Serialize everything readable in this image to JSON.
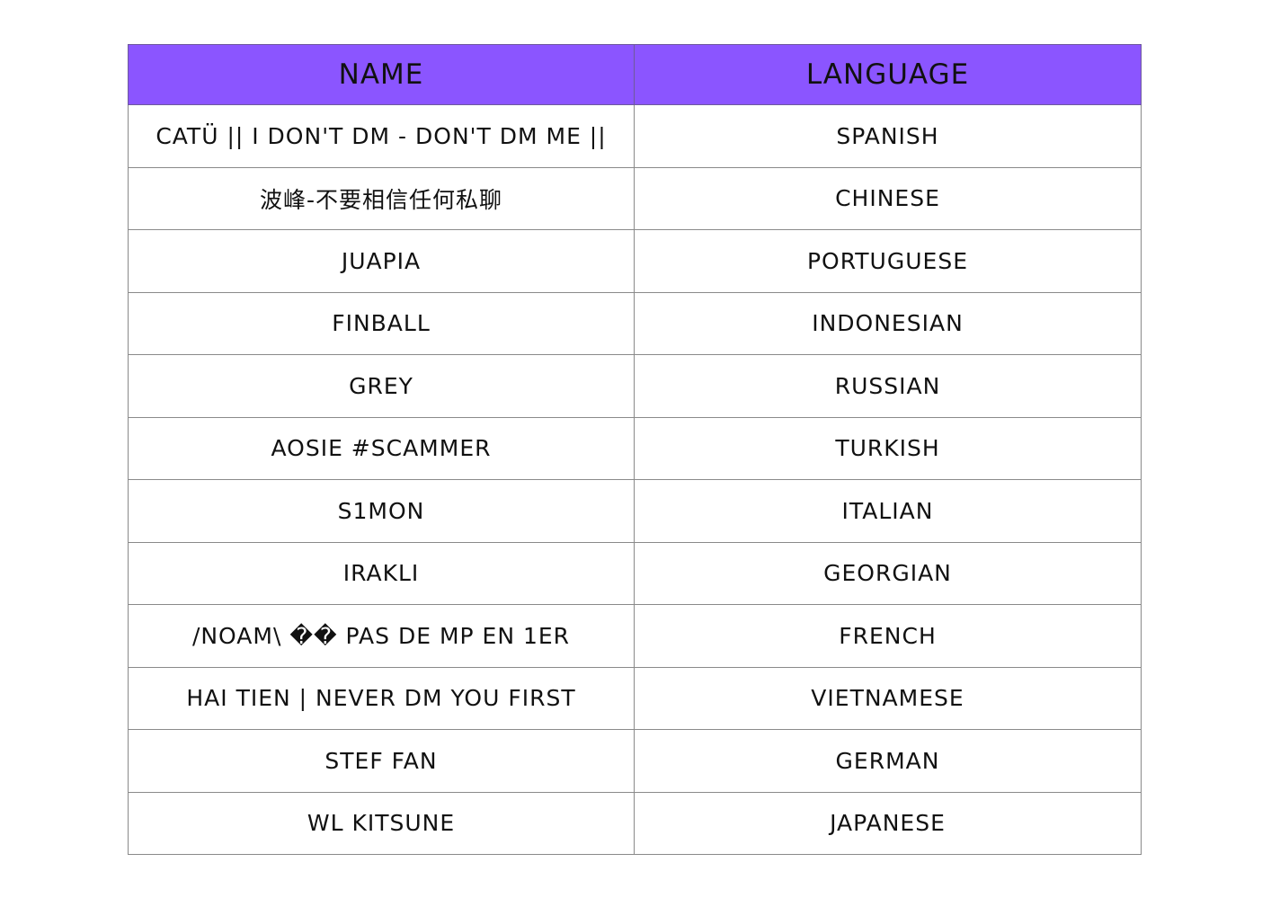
{
  "table": {
    "header_color": "#8b55ff",
    "headers": [
      "NAME",
      "LANGUAGE"
    ],
    "rows": [
      {
        "name": "CATÜ || I DON'T DM - DON'T DM ME ||",
        "language": "SPANISH"
      },
      {
        "name": "波峰-不要相信任何私聊",
        "language": "CHINESE"
      },
      {
        "name": "JUAPIA",
        "language": "PORTUGUESE"
      },
      {
        "name": "FINBALL",
        "language": "INDONESIAN"
      },
      {
        "name": "GREY",
        "language": "RUSSIAN"
      },
      {
        "name": "AOSIE #SCAMMER",
        "language": "TURKISH"
      },
      {
        "name": "S1MON",
        "language": "ITALIAN"
      },
      {
        "name": "IRAKLI",
        "language": "GEORGIAN"
      },
      {
        "name": "/NOAM\\ �� PAS DE MP EN 1ER",
        "language": "FRENCH"
      },
      {
        "name": "HAI TIEN | NEVER DM YOU FIRST",
        "language": "VIETNAMESE"
      },
      {
        "name": "STEF FAN",
        "language": "GERMAN"
      },
      {
        "name": "WL KITSUNE",
        "language": "JAPANESE"
      }
    ]
  }
}
